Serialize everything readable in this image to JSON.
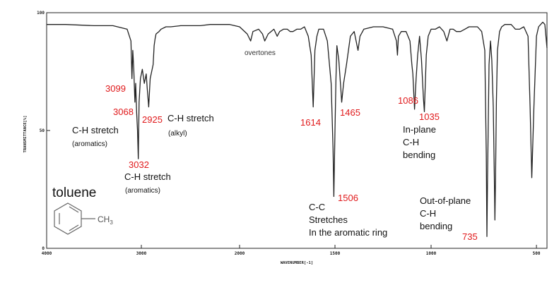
{
  "chart_data": {
    "type": "line",
    "title": "",
    "xlabel": "WAVENUMBER[-1]",
    "ylabel": "TRANSMITTANCE[%]",
    "xlim": [
      4000,
      450
    ],
    "ylim": [
      0,
      100
    ],
    "x_reversed": true,
    "grid": false,
    "x_ticks": [
      4000,
      3000,
      2000,
      1500,
      1000,
      500
    ],
    "x_tick_labels": [
      "4000",
      "3000",
      "2000",
      "1500",
      "1000",
      "500"
    ],
    "y_ticks": [
      0,
      50,
      100
    ],
    "y_tick_labels": [
      "0",
      "50",
      "100"
    ],
    "colors": {
      "line": "#222222",
      "axis": "#222222",
      "annotation_number": "#e0191b",
      "annotation_text": "#111111"
    },
    "series": [
      {
        "x": [
          4000,
          3800,
          3500,
          3300,
          3150,
          3110,
          3099,
          3090,
          3080,
          3068,
          3060,
          3050,
          3040,
          3032,
          3024,
          3010,
          2990,
          2970,
          2950,
          2940,
          2925,
          2910,
          2880,
          2870,
          2860,
          2850,
          2820,
          2800,
          2750,
          2700,
          2600,
          2500,
          2400,
          2300,
          2200,
          2100,
          2000,
          1960,
          1942,
          1930,
          1900,
          1880,
          1868,
          1850,
          1820,
          1803,
          1790,
          1770,
          1750,
          1735,
          1720,
          1700,
          1680,
          1660,
          1640,
          1625,
          1614,
          1605,
          1595,
          1585,
          1560,
          1540,
          1520,
          1510,
          1506,
          1500,
          1495,
          1490,
          1480,
          1470,
          1465,
          1455,
          1440,
          1420,
          1400,
          1390,
          1380,
          1370,
          1350,
          1300,
          1250,
          1200,
          1180,
          1175,
          1170,
          1155,
          1130,
          1110,
          1100,
          1095,
          1086,
          1078,
          1070,
          1060,
          1050,
          1040,
          1035,
          1025,
          1015,
          1000,
          980,
          960,
          940,
          925,
          910,
          895,
          880,
          860,
          840,
          820,
          800,
          780,
          760,
          745,
          738,
          735,
          732,
          725,
          718,
          712,
          705,
          700,
          697,
          694,
          690,
          685,
          675,
          665,
          650,
          640,
          630,
          620,
          610,
          600,
          580,
          560,
          540,
          530,
          522,
          512,
          500,
          490,
          470,
          460,
          450
        ],
        "y": [
          95,
          95,
          94.5,
          94.5,
          93,
          88,
          72,
          84,
          76,
          62,
          70,
          58,
          50,
          38,
          62,
          72,
          76,
          70,
          74,
          68,
          60,
          72,
          78,
          86,
          89,
          91,
          92,
          93,
          94,
          94,
          94.5,
          94.5,
          94.5,
          95,
          95,
          95,
          94,
          91,
          88,
          92,
          93,
          91,
          88,
          91,
          93,
          90,
          92,
          93,
          93,
          92,
          92,
          93,
          93,
          94,
          90,
          82,
          60,
          84,
          90,
          93,
          93,
          88,
          70,
          42,
          22,
          50,
          72,
          86,
          80,
          68,
          62,
          70,
          78,
          90,
          92,
          88,
          84,
          90,
          93,
          94,
          94,
          93,
          88,
          82,
          90,
          92,
          92,
          88,
          78,
          74,
          59,
          72,
          82,
          90,
          80,
          64,
          58,
          82,
          90,
          93,
          93,
          94,
          92,
          88,
          93,
          93,
          92,
          92,
          93,
          94,
          94,
          94,
          92,
          84,
          40,
          5,
          30,
          78,
          88,
          80,
          60,
          30,
          12,
          30,
          62,
          84,
          92,
          94,
          95,
          95,
          95,
          95,
          94,
          93,
          93,
          94,
          90,
          60,
          30,
          60,
          90,
          94,
          96,
          95,
          85
        ]
      }
    ],
    "annotations": [
      {
        "text": "3099",
        "x": 3099,
        "y": 72,
        "color": "red"
      },
      {
        "text": "3068",
        "x": 3068,
        "y": 62,
        "color": "red"
      },
      {
        "text": "3032",
        "x": 3032,
        "y": 38,
        "color": "red"
      },
      {
        "text": "2925",
        "x": 2925,
        "y": 60,
        "color": "red"
      },
      {
        "text": "overtones",
        "x": 1850,
        "y": 88,
        "color": "black"
      },
      {
        "text": "1614",
        "x": 1614,
        "y": 60,
        "color": "red"
      },
      {
        "text": "1465",
        "x": 1465,
        "y": 62,
        "color": "red"
      },
      {
        "text": "1506",
        "x": 1506,
        "y": 22,
        "color": "red"
      },
      {
        "text": "1086",
        "x": 1086,
        "y": 59,
        "color": "red"
      },
      {
        "text": "1035",
        "x": 1035,
        "y": 58,
        "color": "red"
      },
      {
        "text": "735",
        "x": 735,
        "y": 5,
        "color": "red"
      }
    ],
    "labels": {
      "ch_aromatic_1": "C-H stretch",
      "ch_aromatic_1_sub": "(aromatics)",
      "ch_alkyl": "C-H  stretch",
      "ch_alkyl_sub": "(alkyl)",
      "ch_aromatic_2": "C-H stretch",
      "ch_aromatic_2_sub": "(aromatics)",
      "overtones": "overtones",
      "cc_line1": "C-C",
      "cc_line2": "Stretches",
      "cc_line3": "In the aromatic ring",
      "inplane_line1": "In-plane",
      "inplane_line2": "C-H",
      "inplane_line3": "bending",
      "oop_line1": "Out-of-plane",
      "oop_line2": "C-H",
      "oop_line3": "bending",
      "molecule_name": "toluene",
      "molecule_group": "CH",
      "molecule_group_sub": "3"
    }
  }
}
